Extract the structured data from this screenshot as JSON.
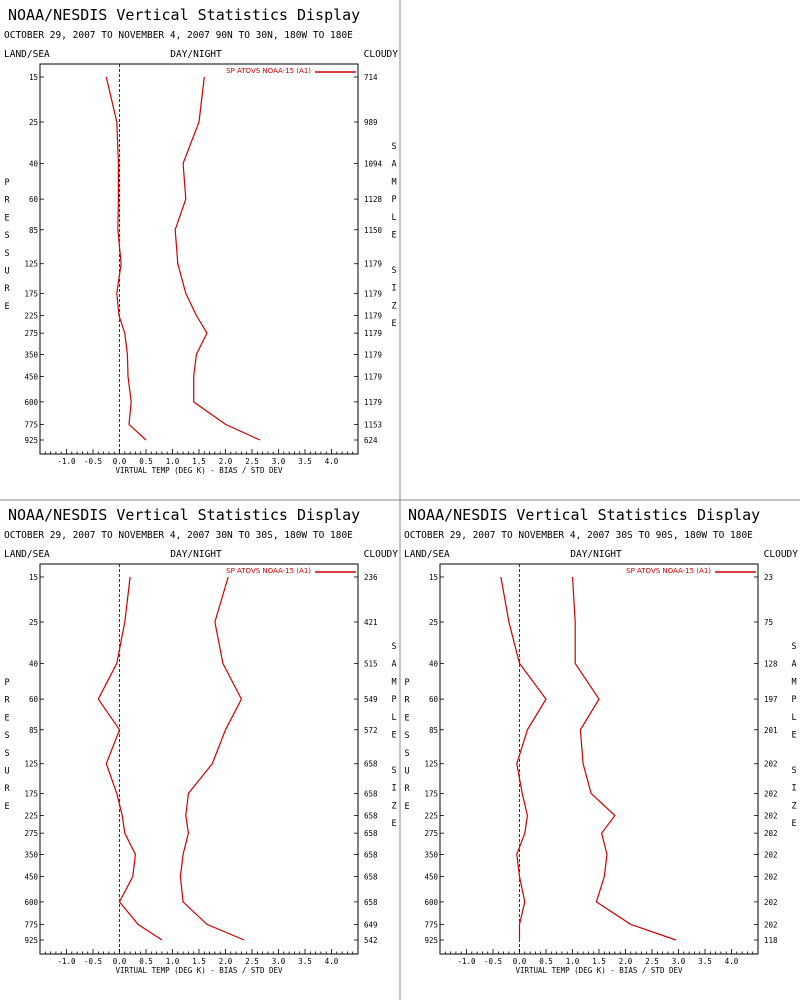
{
  "colors": {
    "series": "#d00000",
    "axis": "#000000",
    "divider": "#888888",
    "zero_line": "#000000"
  },
  "chart_data": [
    {
      "type": "line",
      "title": "NOAA/NESDIS Vertical Statistics Display",
      "subtitle": "OCTOBER 29, 2007 TO NOVEMBER 4, 2007 90N TO 30N, 180W TO 180E",
      "corner_left": "LAND/SEA",
      "corner_center": "DAY/NIGHT",
      "corner_right": "CLOUDY",
      "xlabel": "VIRTUAL TEMP (DEG K) - BIAS / STD DEV",
      "ylabel": "PRESSURE",
      "y2label": "SAMPLE SIZE",
      "xlim": [
        -1.5,
        4.5
      ],
      "x_ticks": [
        "-1.0",
        "-0.5",
        "0.0",
        "0.5",
        "1.0",
        "1.5",
        "2.0",
        "2.5",
        "3.0",
        "3.5",
        "4.0"
      ],
      "y_scale": "log",
      "pressure_levels": [
        "15",
        "25",
        "40",
        "60",
        "85",
        "125",
        "175",
        "225",
        "275",
        "350",
        "450",
        "600",
        "775",
        "925"
      ],
      "sample_size": [
        "714",
        "989",
        "1094",
        "1128",
        "1150",
        "1179",
        "1179",
        "1179",
        "1179",
        "1179",
        "1179",
        "1179",
        "1153",
        "624"
      ],
      "legend": "SP ATOVS NOAA-15 (A1)",
      "legend_position": "top-right",
      "series": [
        {
          "role": "bias",
          "x": [
            -0.25,
            -0.05,
            -0.02,
            -0.02,
            -0.03,
            0.03,
            -0.05,
            -0.01,
            0.1,
            0.15,
            0.16,
            0.22,
            0.18,
            0.5
          ],
          "y": [
            15,
            25,
            40,
            60,
            85,
            125,
            175,
            225,
            275,
            350,
            450,
            600,
            775,
            925
          ]
        },
        {
          "role": "std_dev",
          "x": [
            1.6,
            1.5,
            1.2,
            1.25,
            1.05,
            1.1,
            1.25,
            1.45,
            1.65,
            1.45,
            1.4,
            1.4,
            2.0,
            2.65
          ],
          "y": [
            15,
            25,
            40,
            60,
            85,
            125,
            175,
            225,
            275,
            350,
            450,
            600,
            775,
            925
          ]
        }
      ]
    },
    {
      "type": "line",
      "title": "NOAA/NESDIS Vertical Statistics Display",
      "subtitle": "OCTOBER 29, 2007 TO NOVEMBER 4, 2007 30N TO 30S, 180W TO 180E",
      "corner_left": "LAND/SEA",
      "corner_center": "DAY/NIGHT",
      "corner_right": "CLOUDY",
      "xlabel": "VIRTUAL TEMP (DEG K) - BIAS / STD DEV",
      "ylabel": "PRESSURE",
      "y2label": "SAMPLE SIZE",
      "xlim": [
        -1.5,
        4.5
      ],
      "x_ticks": [
        "-1.0",
        "-0.5",
        "0.0",
        "0.5",
        "1.0",
        "1.5",
        "2.0",
        "2.5",
        "3.0",
        "3.5",
        "4.0"
      ],
      "y_scale": "log",
      "pressure_levels": [
        "15",
        "25",
        "40",
        "60",
        "85",
        "125",
        "175",
        "225",
        "275",
        "350",
        "450",
        "600",
        "775",
        "925"
      ],
      "sample_size": [
        "236",
        "421",
        "515",
        "549",
        "572",
        "658",
        "658",
        "658",
        "658",
        "658",
        "658",
        "658",
        "649",
        "542"
      ],
      "legend": "SP ATOVS NOAA-15 (A1)",
      "legend_position": "top-right",
      "series": [
        {
          "role": "bias",
          "x": [
            0.2,
            0.1,
            -0.05,
            -0.4,
            0.0,
            -0.25,
            -0.05,
            0.05,
            0.1,
            0.3,
            0.25,
            0.0,
            0.35,
            0.8
          ],
          "y": [
            15,
            25,
            40,
            60,
            85,
            125,
            175,
            225,
            275,
            350,
            450,
            600,
            775,
            925
          ]
        },
        {
          "role": "std_dev",
          "x": [
            2.05,
            1.8,
            1.95,
            2.3,
            2.0,
            1.75,
            1.3,
            1.25,
            1.3,
            1.2,
            1.15,
            1.2,
            1.65,
            2.35
          ],
          "y": [
            15,
            25,
            40,
            60,
            85,
            125,
            175,
            225,
            275,
            350,
            450,
            600,
            775,
            925
          ]
        }
      ]
    },
    {
      "type": "line",
      "title": "NOAA/NESDIS Vertical Statistics Display",
      "subtitle": "OCTOBER 29, 2007 TO NOVEMBER 4, 2007 30S TO 90S, 180W TO 180E",
      "corner_left": "LAND/SEA",
      "corner_center": "DAY/NIGHT",
      "corner_right": "CLOUDY",
      "xlabel": "VIRTUAL TEMP (DEG K) - BIAS / STD DEV",
      "ylabel": "PRESSURE",
      "y2label": "SAMPLE SIZE",
      "xlim": [
        -1.5,
        4.5
      ],
      "x_ticks": [
        "-1.0",
        "-0.5",
        "0.0",
        "0.5",
        "1.0",
        "1.5",
        "2.0",
        "2.5",
        "3.0",
        "3.5",
        "4.0"
      ],
      "y_scale": "log",
      "pressure_levels": [
        "15",
        "25",
        "40",
        "60",
        "85",
        "125",
        "175",
        "225",
        "275",
        "350",
        "450",
        "600",
        "775",
        "925"
      ],
      "sample_size": [
        "23",
        "75",
        "128",
        "197",
        "201",
        "202",
        "202",
        "202",
        "202",
        "202",
        "202",
        "202",
        "202",
        "118"
      ],
      "legend": "SP ATOVS NOAA-15 (A1)",
      "legend_position": "top-right",
      "series": [
        {
          "role": "bias",
          "x": [
            -0.35,
            -0.2,
            0.0,
            0.5,
            0.15,
            -0.05,
            0.05,
            0.15,
            0.1,
            -0.05,
            0.0,
            0.1,
            0.0,
            0.0
          ],
          "y": [
            15,
            25,
            40,
            60,
            85,
            125,
            175,
            225,
            275,
            350,
            450,
            600,
            775,
            925
          ]
        },
        {
          "role": "std_dev",
          "x": [
            1.0,
            1.05,
            1.05,
            1.5,
            1.15,
            1.2,
            1.35,
            1.8,
            1.55,
            1.65,
            1.6,
            1.45,
            2.1,
            2.95
          ],
          "y": [
            15,
            25,
            40,
            60,
            85,
            125,
            175,
            225,
            275,
            350,
            450,
            600,
            775,
            925
          ]
        }
      ]
    }
  ]
}
